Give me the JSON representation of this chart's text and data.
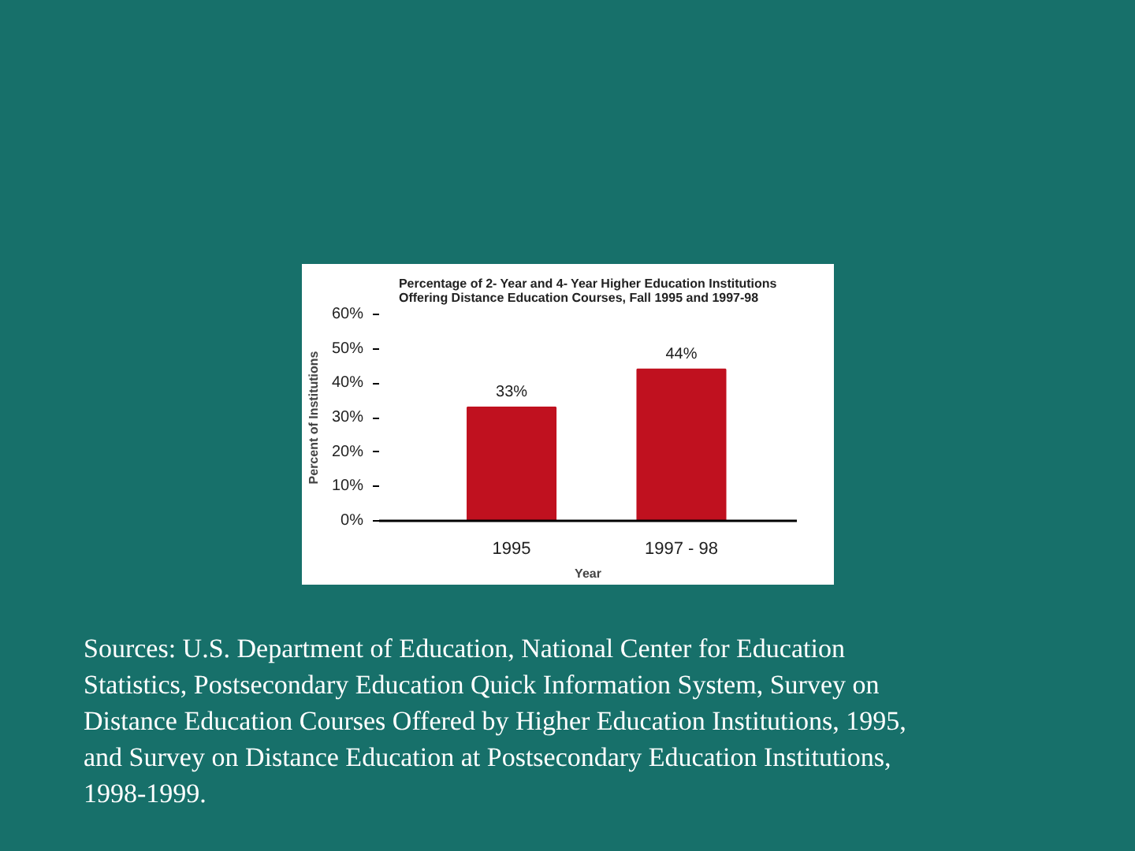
{
  "chart_data": {
    "type": "bar",
    "title": "Percentage of 2- Year and 4- Year Higher Education Institutions Offering Distance Education Courses, Fall 1995 and 1997-98",
    "xlabel": "Year",
    "ylabel": "Percent of Institutions",
    "categories": [
      "1995",
      "1997 - 98"
    ],
    "values": [
      33,
      44
    ],
    "color": "#c0111f",
    "value_labels": [
      "33%",
      "44%"
    ],
    "ylim": [
      0,
      60
    ],
    "yticks": [
      {
        "value": 0,
        "label": "0%"
      },
      {
        "value": 10,
        "label": "10%"
      },
      {
        "value": 20,
        "label": "20%"
      },
      {
        "value": 30,
        "label": "30%"
      },
      {
        "value": 40,
        "label": "40%"
      },
      {
        "value": 50,
        "label": "50%"
      },
      {
        "value": 60,
        "label": "60%"
      }
    ],
    "annotations": [
      "Sources: U.S. Department of Education, National Center for Education Statistics, Postsecondary Education Quick Information System, Survey on Distance Education Courses Offered by Higher Education Institutions, 1995, and Survey on Distance Education at Postsecondary Education Institutions, 1998-1999."
    ]
  }
}
